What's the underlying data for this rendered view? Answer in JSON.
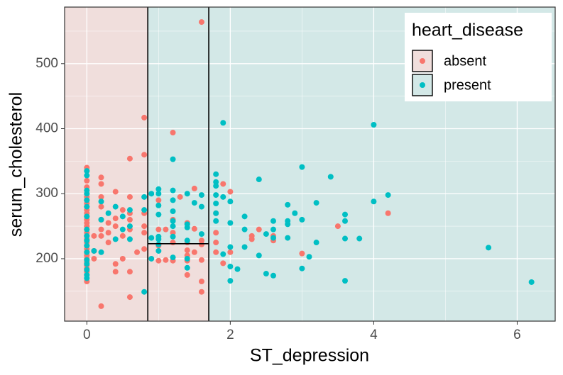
{
  "chart_data": {
    "type": "scatter",
    "x_label": "ST_depression",
    "y_label": "serum_cholesterol",
    "legend_title": "heart_disease",
    "legend_position": "top-right",
    "grid": true,
    "xlim": [
      -0.31,
      6.53
    ],
    "ylim": [
      104,
      587
    ],
    "xticks": [
      0,
      2,
      4,
      6
    ],
    "xminor": [
      1,
      3,
      5
    ],
    "yticks": [
      200,
      300,
      400,
      500
    ],
    "yminor": [
      150,
      250,
      350,
      450,
      550
    ],
    "splits": {
      "x1": 0.85,
      "x2": 1.7,
      "y": 223
    },
    "region_colors": {
      "absent": "#f0dedc",
      "present": "#d3e8e7"
    },
    "series": [
      {
        "name": "absent",
        "color": "#F8766D",
        "x": [
          0,
          0,
          0,
          0,
          0,
          0,
          0,
          0,
          0,
          0,
          0,
          0,
          0,
          0,
          0,
          0,
          0,
          0,
          0,
          0,
          0,
          0,
          0,
          0,
          0,
          0,
          0,
          0,
          0,
          0,
          0.1,
          0.1,
          0.1,
          0.2,
          0.2,
          0.2,
          0.2,
          0.2,
          0.2,
          0.2,
          0.2,
          0.3,
          0.3,
          0.3,
          0.4,
          0.4,
          0.4,
          0.4,
          0.4,
          0.5,
          0.5,
          0.5,
          0.6,
          0.6,
          0.6,
          0.6,
          0.6,
          0.6,
          0.6,
          0.7,
          0.8,
          0.8,
          0.8,
          0.8,
          0.8,
          0.8,
          1.0,
          1.0,
          1.0,
          1.0,
          1.1,
          1.1,
          1.2,
          1.2,
          1.2,
          1.2,
          1.2,
          1.3,
          1.4,
          1.4,
          1.4,
          1.4,
          1.4,
          1.4,
          1.5,
          1.5,
          1.5,
          1.6,
          1.6,
          1.6,
          1.6,
          1.6,
          1.6,
          1.8,
          1.8,
          1.8,
          1.8,
          1.9,
          1.9,
          2.0,
          2.0,
          2.3,
          2.3,
          2.4,
          2.6,
          2.6,
          3.0,
          3.5,
          4.2
        ],
        "values": [
          340,
          335,
          320,
          310,
          300,
          295,
          290,
          285,
          280,
          275,
          270,
          265,
          260,
          255,
          250,
          245,
          240,
          235,
          230,
          225,
          220,
          215,
          210,
          205,
          200,
          195,
          190,
          185,
          180,
          165,
          235,
          212,
          200,
          325,
          315,
          295,
          280,
          260,
          245,
          235,
          127,
          255,
          240,
          225,
          303,
          262,
          250,
          192,
          180,
          275,
          235,
          200,
          354,
          295,
          270,
          260,
          245,
          180,
          141,
          210,
          417,
          360,
          270,
          250,
          240,
          215,
          290,
          245,
          220,
          197,
          245,
          198,
          394,
          260,
          240,
          225,
          197,
          295,
          255,
          225,
          213,
          205,
          197,
          175,
          308,
          246,
          210,
          564,
          198,
          149,
          165,
          228,
          222,
          225,
          240,
          210,
          270,
          315,
          193,
          303,
          210,
          230,
          235,
          245,
          228,
          235,
          208,
          250,
          270
        ]
      },
      {
        "name": "present",
        "color": "#00BFC4",
        "x": [
          0,
          0,
          0,
          0,
          0,
          0,
          0,
          0,
          0,
          0,
          0,
          0,
          0,
          0,
          0,
          0,
          0,
          0.1,
          0.2,
          0.2,
          0.2,
          0.3,
          0.4,
          0.4,
          0.5,
          0.5,
          0.6,
          0.6,
          0.6,
          0.8,
          0.8,
          0.8,
          0.9,
          0.9,
          0.9,
          1.0,
          1.0,
          1.0,
          1.0,
          1.0,
          1.0,
          1.0,
          1.0,
          1.2,
          1.2,
          1.2,
          1.2,
          1.2,
          1.2,
          1.2,
          1.2,
          1.4,
          1.4,
          1.4,
          1.4,
          1.4,
          1.4,
          1.5,
          1.6,
          1.6,
          1.6,
          1.8,
          1.8,
          1.8,
          1.8,
          1.8,
          1.8,
          1.8,
          1.9,
          1.9,
          1.9,
          2.0,
          2.0,
          2.0,
          2.0,
          2.0,
          2.1,
          2.2,
          2.2,
          2.2,
          2.4,
          2.4,
          2.5,
          2.5,
          2.6,
          2.6,
          2.6,
          2.6,
          2.8,
          2.8,
          2.8,
          2.8,
          2.9,
          3.0,
          3.0,
          3.0,
          3.1,
          3.2,
          3.2,
          3.4,
          3.6,
          3.6,
          3.6,
          3.6,
          3.8,
          4.0,
          4.0,
          4.2,
          5.6,
          6.2
        ],
        "values": [
          335,
          328,
          305,
          300,
          290,
          280,
          265,
          245,
          235,
          228,
          220,
          210,
          198,
          192,
          183,
          175,
          170,
          212,
          288,
          260,
          210,
          270,
          230,
          280,
          265,
          245,
          275,
          250,
          230,
          149,
          295,
          275,
          300,
          232,
          200,
          307,
          300,
          282,
          268,
          230,
          222,
          212,
          234,
          353,
          305,
          290,
          273,
          258,
          250,
          234,
          202,
          300,
          253,
          248,
          228,
          200,
          186,
          286,
          298,
          280,
          238,
          330,
          318,
          312,
          298,
          285,
          270,
          258,
          409,
          295,
          207,
          288,
          255,
          218,
          188,
          166,
          184,
          265,
          245,
          218,
          322,
          205,
          238,
          177,
          258,
          245,
          232,
          174,
          283,
          258,
          253,
          232,
          270,
          341,
          260,
          185,
          203,
          286,
          225,
          326,
          268,
          258,
          231,
          166,
          231,
          406,
          288,
          298,
          217,
          164
        ]
      }
    ]
  }
}
